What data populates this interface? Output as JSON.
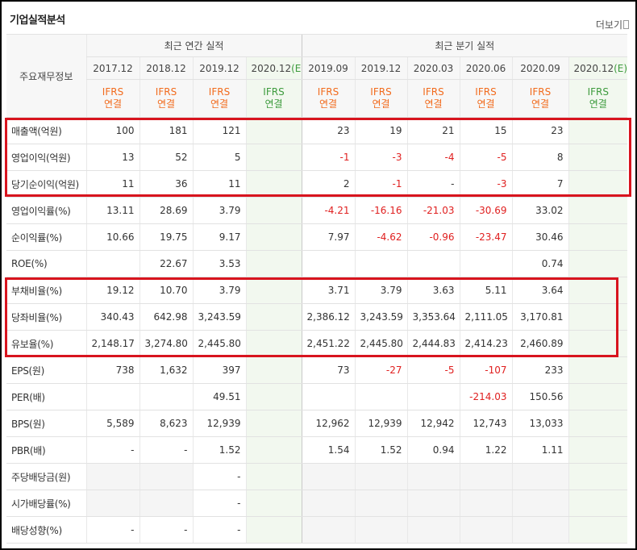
{
  "header": {
    "title": "기업실적분석",
    "more": "더보기"
  },
  "table": {
    "row_header": "주요재무정보",
    "groups": [
      {
        "label": "최근 연간 실적",
        "columns": [
          {
            "period": "2017.12",
            "basis": [
              "IFRS",
              "연결"
            ]
          },
          {
            "period": "2018.12",
            "basis": [
              "IFRS",
              "연결"
            ]
          },
          {
            "period": "2019.12",
            "basis": [
              "IFRS",
              "연결"
            ]
          },
          {
            "period": "2020.12",
            "estimate": "(E)",
            "basis": [
              "IFRS",
              "연결"
            ]
          }
        ]
      },
      {
        "label": "최근 분기 실적",
        "columns": [
          {
            "period": "2019.09",
            "basis": [
              "IFRS",
              "연결"
            ]
          },
          {
            "period": "2019.12",
            "basis": [
              "IFRS",
              "연결"
            ]
          },
          {
            "period": "2020.03",
            "basis": [
              "IFRS",
              "연결"
            ]
          },
          {
            "period": "2020.06",
            "basis": [
              "IFRS",
              "연결"
            ]
          },
          {
            "period": "2020.09",
            "basis": [
              "IFRS",
              "연결"
            ]
          },
          {
            "period": "2020.12",
            "estimate": "(E)",
            "basis": [
              "IFRS",
              "연결"
            ]
          }
        ]
      }
    ],
    "rows": [
      {
        "label": "매출액(억원)",
        "cells": [
          "100",
          "181",
          "121",
          null,
          "23",
          "19",
          "21",
          "15",
          "23",
          null
        ]
      },
      {
        "label": "영업이익(억원)",
        "cells": [
          "13",
          "52",
          "5",
          null,
          "-1",
          "-3",
          "-4",
          "-5",
          "8",
          null
        ]
      },
      {
        "label": "당기순이익(억원)",
        "cells": [
          "11",
          "36",
          "11",
          null,
          "2",
          "-1",
          "-",
          "-3",
          "7",
          null
        ]
      },
      {
        "label": "영업이익률(%)",
        "cells": [
          "13.11",
          "28.69",
          "3.79",
          null,
          "-4.21",
          "-16.16",
          "-21.03",
          "-30.69",
          "33.02",
          null
        ]
      },
      {
        "label": "순이익률(%)",
        "cells": [
          "10.66",
          "19.75",
          "9.17",
          null,
          "7.97",
          "-4.62",
          "-0.96",
          "-23.47",
          "30.46",
          null
        ]
      },
      {
        "label": "ROE(%)",
        "cells": [
          null,
          "22.67",
          "3.53",
          null,
          null,
          null,
          null,
          null,
          "0.74",
          null
        ]
      },
      {
        "label": "부채비율(%)",
        "cells": [
          "19.12",
          "10.70",
          "3.79",
          null,
          "3.71",
          "3.79",
          "3.63",
          "5.11",
          "3.64",
          null
        ]
      },
      {
        "label": "당좌비율(%)",
        "cells": [
          "340.43",
          "642.98",
          "3,243.59",
          null,
          "2,386.12",
          "3,243.59",
          "3,353.64",
          "2,111.05",
          "3,170.81",
          null
        ]
      },
      {
        "label": "유보율(%)",
        "cells": [
          "2,148.17",
          "3,274.80",
          "2,445.80",
          null,
          "2,451.22",
          "2,445.80",
          "2,444.83",
          "2,414.23",
          "2,460.89",
          null
        ]
      },
      {
        "label": "EPS(원)",
        "cells": [
          "738",
          "1,632",
          "397",
          null,
          "73",
          "-27",
          "-5",
          "-107",
          "233",
          null
        ]
      },
      {
        "label": "PER(배)",
        "cells": [
          null,
          null,
          "49.51",
          null,
          null,
          null,
          null,
          "-214.03",
          "150.56",
          null
        ]
      },
      {
        "label": "BPS(원)",
        "cells": [
          "5,589",
          "8,623",
          "12,939",
          null,
          "12,962",
          "12,939",
          "12,942",
          "12,743",
          "13,033",
          null
        ]
      },
      {
        "label": "PBR(배)",
        "cells": [
          "-",
          "-",
          "1.52",
          null,
          "1.54",
          "1.52",
          "0.94",
          "1.22",
          "1.11",
          null
        ]
      },
      {
        "label": "주당배당금(원)",
        "cells": [
          null,
          null,
          "-",
          null,
          null,
          null,
          null,
          null,
          null,
          null
        ]
      },
      {
        "label": "시가배당률(%)",
        "cells": [
          null,
          null,
          "-",
          null,
          null,
          null,
          null,
          null,
          null,
          null
        ]
      },
      {
        "label": "배당성향(%)",
        "cells": [
          "-",
          "-",
          "-",
          null,
          null,
          null,
          null,
          null,
          null,
          null
        ]
      }
    ]
  }
}
